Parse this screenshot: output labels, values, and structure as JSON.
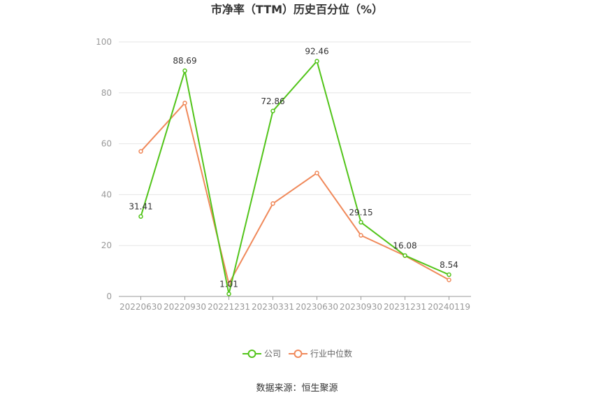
{
  "chart_data": {
    "type": "line",
    "title": "市净率（TTM）历史百分位（%）",
    "categories": [
      "20220630",
      "20220930",
      "20221231",
      "20230331",
      "20230630",
      "20230930",
      "20231231",
      "20240119"
    ],
    "yticks": [
      "0",
      "20",
      "40",
      "60",
      "80",
      "100"
    ],
    "ylim": [
      0,
      100
    ],
    "grid": true,
    "legend_position": "bottom",
    "series": [
      {
        "name": "公司",
        "color": "#52c41a",
        "values": [
          31.41,
          88.69,
          1.01,
          72.86,
          92.46,
          29.15,
          16.08,
          8.54
        ],
        "labels": [
          "31.41",
          "88.69",
          "1.01",
          "72.86",
          "92.46",
          "29.15",
          "16.08",
          "8.54"
        ]
      },
      {
        "name": "行业中位数",
        "color": "#f0895a",
        "values": [
          57.0,
          76.0,
          5.0,
          36.5,
          48.5,
          24.0,
          16.0,
          6.5
        ]
      }
    ],
    "source": "数据来源：恒生聚源"
  }
}
